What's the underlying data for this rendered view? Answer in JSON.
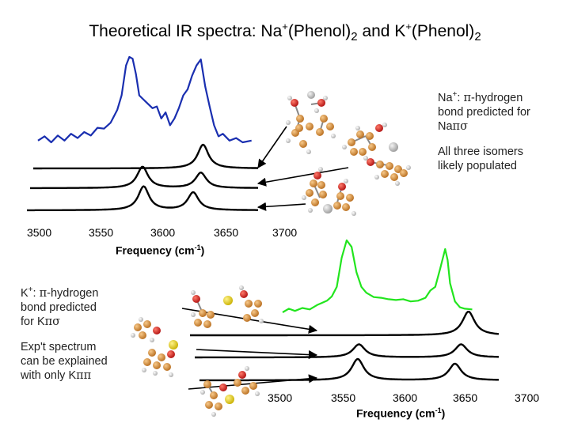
{
  "title": {
    "part1": "Theoretical IR spectra: Na",
    "sup1": "+",
    "part2": "(Phenol)",
    "sub1": "2",
    "part3": " and K",
    "sup2": "+",
    "part4": "(Phenol)",
    "sub2": "2"
  },
  "na_note": {
    "ion": "Na",
    "ion_sup": "+",
    "colon": ": ",
    "pi": "π",
    "line1_rest": "-hydrogen",
    "line2": "bond predicted for",
    "isomer_a": "Na",
    "isomer_b": "π",
    "isomer_c": "σ",
    "populated_line1": "All three isomers",
    "populated_line2": "likely populated"
  },
  "k_note": {
    "ion": "K",
    "ion_sup": "+",
    "colon": ": ",
    "pi": "π",
    "line1_rest": "-hydrogen",
    "line2": "bond predicted",
    "line3_prefix": "for ",
    "isomer_a": "K",
    "isomer_b": "π",
    "isomer_c": "σ",
    "expt_line1": "Exp't spectrum",
    "expt_line2": "can be explained",
    "expt_line3_prefix": "with only ",
    "expt_isomer_a": "K",
    "expt_isomer_b": "ππ"
  },
  "chart_data": [
    {
      "type": "line",
      "panel": "Na+(Phenol)2",
      "xlabel": "Frequency (cm",
      "xlabel_sup": "-1",
      "xlabel_close": ")",
      "x_ticks": [
        "3500",
        "3550",
        "3600",
        "3650",
        "3700"
      ],
      "xlim": [
        3500,
        3700
      ],
      "series": [
        {
          "role": "experimental",
          "color": "#1a2fb0",
          "x": [
            3500,
            3506,
            3512,
            3518,
            3524,
            3530,
            3536,
            3542,
            3548,
            3554,
            3560,
            3566,
            3572,
            3576,
            3580,
            3583,
            3586,
            3589,
            3592,
            3596,
            3600,
            3604,
            3608,
            3612,
            3616,
            3620,
            3624,
            3628,
            3632,
            3636,
            3640,
            3644,
            3648,
            3652,
            3656,
            3660,
            3664,
            3668,
            3674,
            3680,
            3686,
            3694
          ],
          "y": [
            0.02,
            0.07,
            0.0,
            0.08,
            0.02,
            0.1,
            0.05,
            0.12,
            0.08,
            0.17,
            0.16,
            0.23,
            0.38,
            0.55,
            0.9,
            1.0,
            0.98,
            0.8,
            0.55,
            0.5,
            0.45,
            0.4,
            0.42,
            0.28,
            0.35,
            0.2,
            0.28,
            0.4,
            0.55,
            0.62,
            0.78,
            0.9,
            0.97,
            0.65,
            0.42,
            0.2,
            0.07,
            0.1,
            0.02,
            0.05,
            0.0,
            0.02
          ]
        },
        {
          "role": "theory",
          "color": "#000000",
          "peaks": [
            {
              "x": 3650,
              "height": 1.0
            }
          ]
        },
        {
          "role": "theory",
          "color": "#000000",
          "peaks": [
            {
              "x": 3595,
              "height": 0.9
            },
            {
              "x": 3648,
              "height": 0.65
            }
          ]
        },
        {
          "role": "theory",
          "color": "#000000",
          "peaks": [
            {
              "x": 3596,
              "height": 1.0
            },
            {
              "x": 3641,
              "height": 0.75
            }
          ]
        }
      ]
    },
    {
      "type": "line",
      "panel": "K+(Phenol)2",
      "xlabel": "Frequency (cm",
      "xlabel_sup": "-1",
      "xlabel_close": ")",
      "x_ticks": [
        "3500",
        "3550",
        "3600",
        "3650",
        "3700"
      ],
      "xlim": [
        3500,
        3700
      ],
      "series": [
        {
          "role": "experimental",
          "color": "#22e51e",
          "x": [
            3500,
            3505,
            3510,
            3516,
            3522,
            3528,
            3532,
            3536,
            3540,
            3544,
            3548,
            3552,
            3556,
            3560,
            3564,
            3568,
            3574,
            3580,
            3586,
            3592,
            3598,
            3604,
            3610,
            3616,
            3620,
            3624,
            3628,
            3632,
            3634,
            3636,
            3640,
            3644,
            3648,
            3654
          ],
          "y": [
            0.0,
            0.05,
            0.02,
            0.06,
            0.04,
            0.1,
            0.13,
            0.16,
            0.22,
            0.35,
            0.75,
            0.99,
            0.9,
            0.55,
            0.35,
            0.27,
            0.21,
            0.2,
            0.18,
            0.17,
            0.18,
            0.15,
            0.16,
            0.2,
            0.3,
            0.35,
            0.6,
            0.87,
            0.72,
            0.4,
            0.15,
            0.07,
            0.05,
            0.04
          ]
        },
        {
          "role": "theory",
          "color": "#000000",
          "peaks": [
            {
              "x": 3651,
              "height": 1.0
            }
          ]
        },
        {
          "role": "theory",
          "color": "#000000",
          "peaks": [
            {
              "x": 3562,
              "height": 0.55
            },
            {
              "x": 3645,
              "height": 0.55
            }
          ]
        },
        {
          "role": "theory",
          "color": "#000000",
          "peaks": [
            {
              "x": 3561,
              "height": 0.9
            },
            {
              "x": 3640,
              "height": 0.7
            }
          ]
        }
      ]
    }
  ]
}
